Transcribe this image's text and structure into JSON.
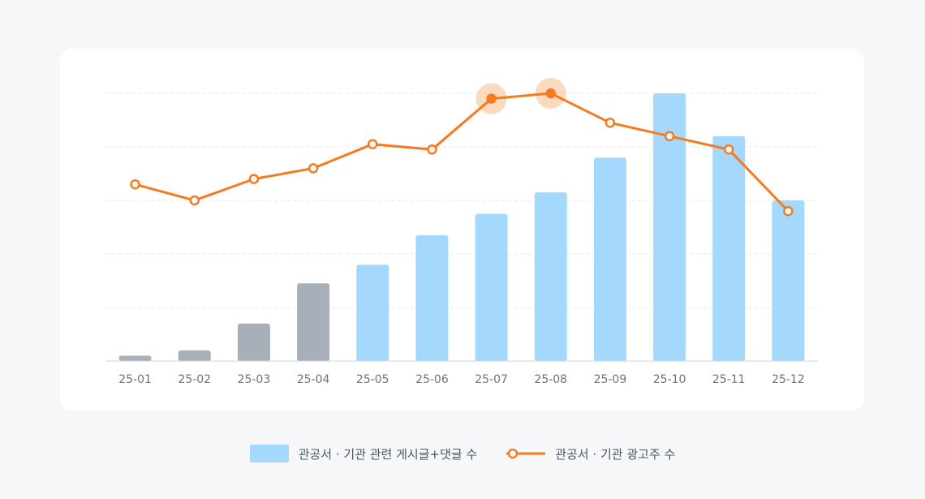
{
  "chart_data": {
    "type": "bar",
    "title": "",
    "xlabel": "",
    "ylabel": "",
    "categories": [
      "25-01",
      "25-02",
      "25-03",
      "25-04",
      "25-05",
      "25-06",
      "25-07",
      "25-08",
      "25-09",
      "25-10",
      "25-11",
      "25-12"
    ],
    "ylim": [
      0,
      100
    ],
    "grid": true,
    "legend_position": "bottom-center",
    "series": [
      {
        "name": "관공서 · 기관 관련 게시글+댓글 수",
        "type": "bar",
        "color": "#a5d8fd",
        "muted_color": "#a7b0b9",
        "muted_categories": [
          "25-01",
          "25-02",
          "25-03",
          "25-04"
        ],
        "values": [
          2,
          4,
          14,
          29,
          36,
          47,
          55,
          63,
          76,
          100,
          84,
          60
        ]
      },
      {
        "name": "관공서 · 기관 광고주 수",
        "type": "line",
        "color": "#f47b20",
        "highlight_categories": [
          "25-07",
          "25-08"
        ],
        "values": [
          66,
          60,
          68,
          72,
          81,
          79,
          98,
          100,
          89,
          84,
          79,
          56
        ]
      }
    ]
  }
}
